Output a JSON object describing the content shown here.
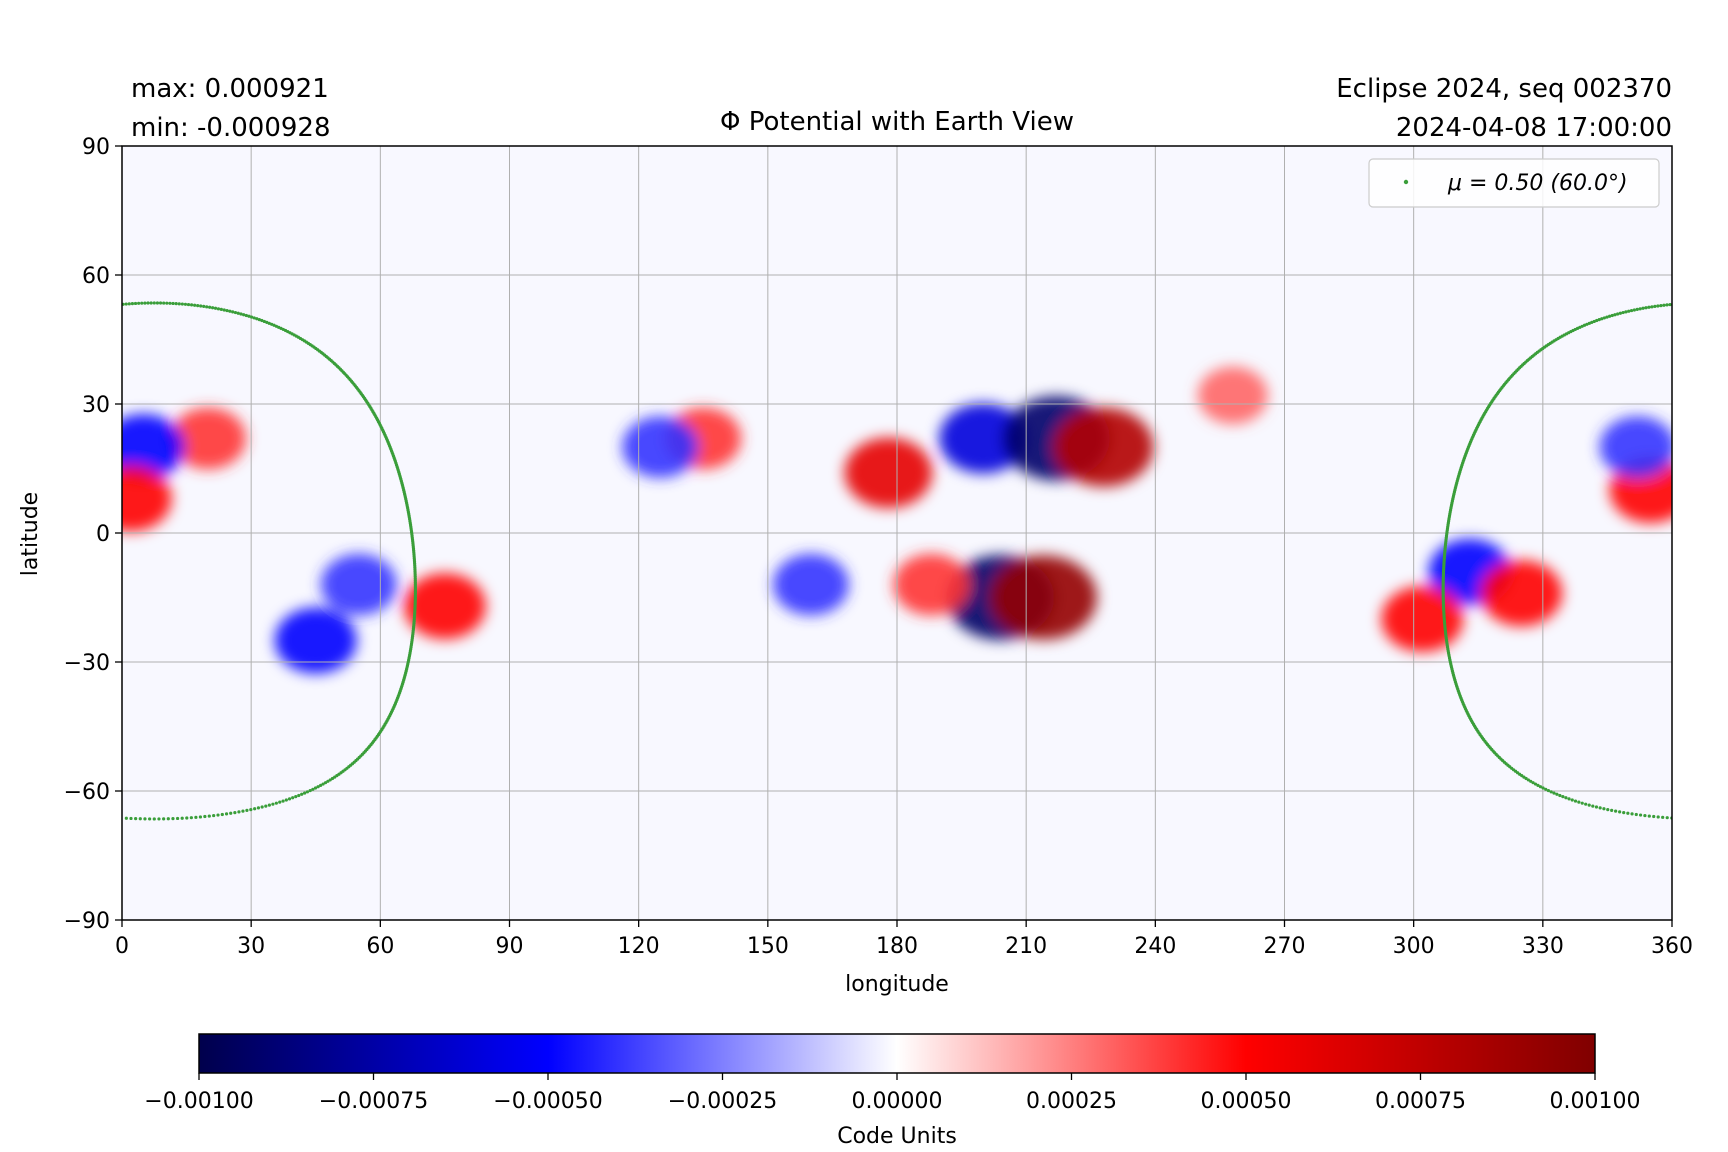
{
  "chart_data": {
    "type": "heatmap",
    "title": "Φ Potential with Earth View",
    "header_left": [
      "max:  0.000921",
      "min:  -0.000928"
    ],
    "header_right": [
      "Eclipse 2024, seq 002370",
      "2024-04-08 17:00:00"
    ],
    "xlabel": "longitude",
    "ylabel": "latitude",
    "xlim": [
      0,
      360
    ],
    "ylim": [
      -90,
      90
    ],
    "x_ticks": [
      0,
      30,
      60,
      90,
      120,
      150,
      180,
      210,
      240,
      270,
      300,
      330,
      360
    ],
    "y_ticks": [
      90,
      60,
      30,
      0,
      -30,
      -60,
      -90
    ],
    "y_tick_labels": [
      "90",
      "60",
      "30",
      "0",
      "−30",
      "−60",
      "−90"
    ],
    "grid": true,
    "colormap": "seismic",
    "colormap_stops": [
      "#00004c",
      "#0000ff",
      "#ffffff",
      "#ff0000",
      "#800000"
    ],
    "value_range": [
      -0.001,
      0.001
    ],
    "colorbar": {
      "label": "Code Units",
      "ticks": [
        "−0.00100",
        "−0.00075",
        "−0.00050",
        "−0.00025",
        "0.00000",
        "0.00025",
        "0.00050",
        "0.00075",
        "0.00100"
      ]
    },
    "legend": {
      "position": "top-right",
      "entries": [
        {
          "label": "μ = 0.50 (60.0°)",
          "color": "#3a9e3a"
        }
      ]
    },
    "features": [
      {
        "lon": 20,
        "lat": 22,
        "value": 0.0004
      },
      {
        "lon": 5,
        "lat": 20,
        "value": -0.0005
      },
      {
        "lon": 2,
        "lat": 8,
        "value": 0.0005
      },
      {
        "lon": 55,
        "lat": -12,
        "value": -0.0004
      },
      {
        "lon": 45,
        "lat": -25,
        "value": -0.0005
      },
      {
        "lon": 75,
        "lat": -17,
        "value": 0.0005
      },
      {
        "lon": 135,
        "lat": 22,
        "value": 0.0004
      },
      {
        "lon": 125,
        "lat": 20,
        "value": -0.0004
      },
      {
        "lon": 160,
        "lat": -12,
        "value": -0.0004
      },
      {
        "lon": 178,
        "lat": 14,
        "value": 0.0006
      },
      {
        "lon": 200,
        "lat": 22,
        "value": -0.0006
      },
      {
        "lon": 217,
        "lat": 22,
        "value": -0.00092
      },
      {
        "lon": 228,
        "lat": 20,
        "value": 0.0008
      },
      {
        "lon": 204,
        "lat": -15,
        "value": -0.00093
      },
      {
        "lon": 214,
        "lat": -15,
        "value": 0.00092
      },
      {
        "lon": 188,
        "lat": -12,
        "value": 0.0004
      },
      {
        "lon": 258,
        "lat": 32,
        "value": 0.0003
      },
      {
        "lon": 313,
        "lat": -9,
        "value": -0.0005
      },
      {
        "lon": 325,
        "lat": -14,
        "value": 0.0005
      },
      {
        "lon": 302,
        "lat": -20,
        "value": 0.0005
      },
      {
        "lon": 355,
        "lat": 10,
        "value": 0.0005
      },
      {
        "lon": 352,
        "lat": 20,
        "value": -0.0004
      }
    ],
    "earth_view_curve": {
      "name": "μ = 0.50 (60.0°)",
      "center_lon": 7.5,
      "center_lat": -6.5,
      "angular_radius_deg": 60.0
    }
  }
}
